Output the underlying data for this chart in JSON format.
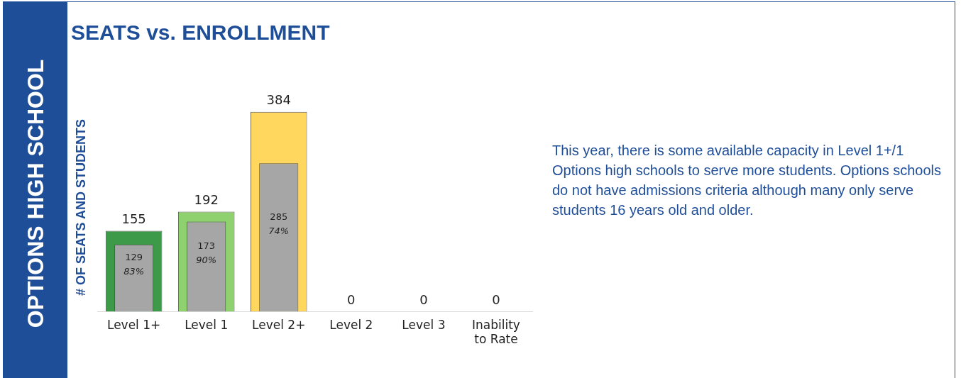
{
  "chart_data": {
    "type": "bar",
    "title": "SEATS vs. ENROLLMENT",
    "subtitle": "OPTIONS HIGH SCHOOL",
    "ylabel": "# OF SEATS AND STUDENTS",
    "categories": [
      "Level 1+",
      "Level 1",
      "Level 2+",
      "Level 2",
      "Level 3",
      "Inability to Rate"
    ],
    "series": [
      {
        "name": null,
        "colors": [
          "#3c9a48",
          "#8fd16f",
          "#ffd75e",
          "#cccccc",
          "#cccccc",
          "#cccccc"
        ],
        "values": [
          155,
          192,
          384,
          0,
          0,
          0
        ],
        "value_labels": [
          "155",
          "192",
          "384",
          "0",
          "0",
          "0"
        ]
      },
      {
        "name": null,
        "color": "#a6a6a6",
        "values": [
          129,
          173,
          285,
          null,
          null,
          null
        ],
        "value_labels": [
          "129\n83%",
          "173\n90%",
          "285\n74%",
          null,
          null,
          null
        ]
      }
    ],
    "tick_labels": "x",
    "grid": false,
    "legend": false,
    "annotations": [
      "This year, there is some available capacity in Level 1+/1 Options high schools to serve more students. Options schools do not have admissions criteria although many only serve students 16 years old and older."
    ]
  }
}
